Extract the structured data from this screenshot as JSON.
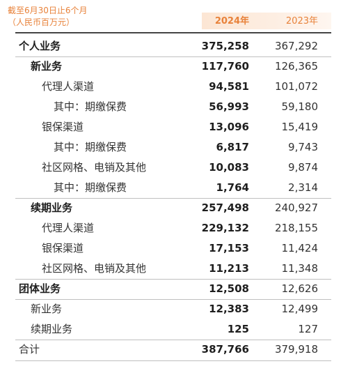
{
  "header": {
    "note_line1": "截至6月30日止6个月",
    "note_line2": "（人民币百万元）",
    "col_current": "2024年",
    "col_prior": "2023年"
  },
  "rows": [
    {
      "label": "个人业务",
      "v2024": "375,258",
      "v2023": "367,292"
    },
    {
      "label": "新业务",
      "v2024": "117,760",
      "v2023": "126,365"
    },
    {
      "label": "代理人渠道",
      "v2024": "94,581",
      "v2023": "101,072"
    },
    {
      "label": "其中：期缴保费",
      "v2024": "56,993",
      "v2023": "59,180"
    },
    {
      "label": "银保渠道",
      "v2024": "13,096",
      "v2023": "15,419"
    },
    {
      "label": "其中：期缴保费",
      "v2024": "6,817",
      "v2023": "9,743"
    },
    {
      "label": "社区网格、电销及其他",
      "v2024": "10,083",
      "v2023": "9,874"
    },
    {
      "label": "其中：期缴保费",
      "v2024": "1,764",
      "v2023": "2,314"
    },
    {
      "label": "续期业务",
      "v2024": "257,498",
      "v2023": "240,927"
    },
    {
      "label": "代理人渠道",
      "v2024": "229,132",
      "v2023": "218,155"
    },
    {
      "label": "银保渠道",
      "v2024": "17,153",
      "v2023": "11,424"
    },
    {
      "label": "社区网格、电销及其他",
      "v2024": "11,213",
      "v2023": "11,348"
    },
    {
      "label": "团体业务",
      "v2024": "12,508",
      "v2023": "12,626"
    },
    {
      "label": "新业务",
      "v2024": "12,383",
      "v2023": "12,499"
    },
    {
      "label": "续期业务",
      "v2024": "125",
      "v2023": "127"
    }
  ],
  "total": {
    "label": "合计",
    "v2024": "387,766",
    "v2023": "379,918"
  }
}
